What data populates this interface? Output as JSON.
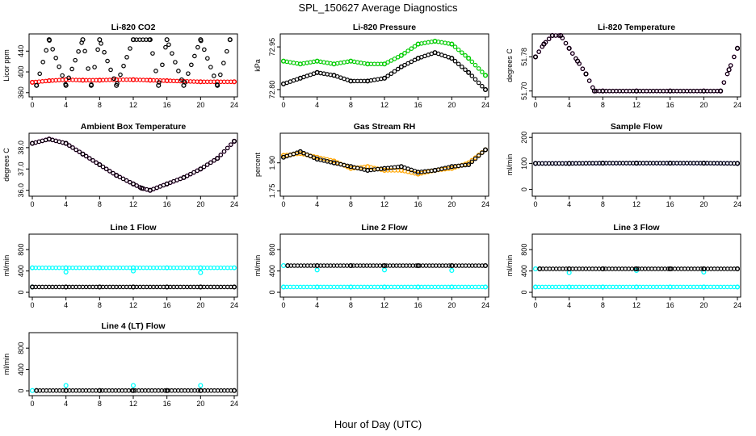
{
  "figure": {
    "title": "SPL_150627  Average Diagnostics",
    "xlabel": "Hour of Day (UTC)"
  },
  "colors": {
    "black": "#000000",
    "red": "#ff0000",
    "green": "#00cc00",
    "magenta": "#ff00ff",
    "orange": "#ffa500",
    "blue": "#0000ff",
    "cyan": "#00ffff"
  },
  "chart_data": [
    {
      "type": "scatter",
      "title": "Li-820 CO2",
      "ylabel": "Licor ppm",
      "xlim": [
        0,
        24
      ],
      "ylim": [
        355,
        470
      ],
      "xticks": [
        "0",
        "4",
        "8",
        "12",
        "16",
        "20",
        "24"
      ],
      "yticks": [
        "360",
        "400",
        "440"
      ],
      "series": [
        {
          "color": "red",
          "x": [
            0,
            2,
            4,
            6,
            8,
            10,
            12,
            14,
            16,
            18,
            20,
            22,
            24
          ],
          "y": [
            380,
            383,
            385,
            384,
            384,
            385,
            385,
            384,
            383,
            382,
            381,
            381,
            381
          ]
        },
        {
          "color": "black",
          "x": [
            0.5,
            2,
            4,
            6,
            7,
            8,
            10,
            12,
            14,
            15,
            16,
            18,
            20,
            22,
            23.5
          ],
          "y": [
            374,
            462,
            374,
            462,
            374,
            462,
            374,
            462,
            462,
            374,
            462,
            374,
            462,
            374,
            462
          ]
        }
      ]
    },
    {
      "type": "scatter",
      "title": "Li-820 Pressure",
      "ylabel": "kPa",
      "xlim": [
        0,
        24
      ],
      "ylim": [
        72.78,
        72.99
      ],
      "xticks": [
        "0",
        "4",
        "8",
        "12",
        "16",
        "20",
        "24"
      ],
      "yticks": [
        "72.80",
        "72.95"
      ],
      "series": [
        {
          "color": "green",
          "x": [
            0,
            2,
            4,
            6,
            8,
            10,
            12,
            14,
            16,
            18,
            20,
            22,
            24
          ],
          "y": [
            72.9,
            72.89,
            72.9,
            72.89,
            72.9,
            72.89,
            72.89,
            72.92,
            72.96,
            72.97,
            72.96,
            72.91,
            72.85
          ]
        },
        {
          "color": "black",
          "x": [
            0,
            2,
            4,
            6,
            8,
            10,
            12,
            14,
            16,
            18,
            20,
            22,
            24
          ],
          "y": [
            72.82,
            72.84,
            72.86,
            72.85,
            72.83,
            72.83,
            72.84,
            72.88,
            72.91,
            72.93,
            72.91,
            72.86,
            72.8
          ]
        }
      ]
    },
    {
      "type": "scatter",
      "title": "Li-820 Temperature",
      "ylabel": "degrees C",
      "xlim": [
        0,
        24
      ],
      "ylim": [
        51.69,
        51.83
      ],
      "xticks": [
        "0",
        "4",
        "8",
        "12",
        "16",
        "20",
        "24"
      ],
      "yticks": [
        "51.70",
        "51.78"
      ],
      "series": [
        {
          "color": "magenta",
          "x": [
            0,
            1,
            2,
            3,
            4,
            5,
            6,
            7,
            8,
            12,
            16,
            20,
            22,
            23,
            24
          ],
          "y": [
            51.78,
            51.81,
            51.83,
            51.83,
            51.8,
            51.77,
            51.74,
            51.7,
            51.7,
            51.7,
            51.7,
            51.7,
            51.7,
            51.75,
            51.8
          ]
        },
        {
          "color": "black",
          "x": [
            0,
            1,
            2,
            3,
            4,
            5,
            6,
            7,
            8,
            12,
            16,
            20,
            22,
            23,
            24
          ],
          "y": [
            51.78,
            51.81,
            51.83,
            51.83,
            51.8,
            51.77,
            51.74,
            51.7,
            51.7,
            51.7,
            51.7,
            51.7,
            51.7,
            51.75,
            51.8
          ]
        }
      ]
    },
    {
      "type": "scatter",
      "title": "Ambient Box Temperature",
      "ylabel": "degrees C",
      "xlim": [
        0,
        24
      ],
      "ylim": [
        35.8,
        38.6
      ],
      "xticks": [
        "0",
        "4",
        "8",
        "12",
        "16",
        "20",
        "24"
      ],
      "yticks": [
        "36.0",
        "37.0",
        "38.0"
      ],
      "series": [
        {
          "color": "magenta",
          "x": [
            0,
            2,
            4,
            6,
            8,
            10,
            12,
            13,
            14,
            16,
            18,
            20,
            22,
            24
          ],
          "y": [
            38.2,
            38.4,
            38.2,
            37.7,
            37.2,
            36.7,
            36.3,
            36.1,
            36.0,
            36.3,
            36.6,
            37.0,
            37.5,
            38.3
          ]
        },
        {
          "color": "black",
          "x": [
            0,
            2,
            4,
            6,
            8,
            10,
            12,
            13,
            14,
            16,
            18,
            20,
            22,
            24
          ],
          "y": [
            38.2,
            38.4,
            38.2,
            37.7,
            37.2,
            36.7,
            36.3,
            36.1,
            36.0,
            36.3,
            36.6,
            37.0,
            37.5,
            38.3
          ]
        }
      ]
    },
    {
      "type": "scatter",
      "title": "Gas Stream RH",
      "ylabel": "percent",
      "xlim": [
        0,
        24
      ],
      "ylim": [
        1.73,
        2.05
      ],
      "xticks": [
        "0",
        "4",
        "8",
        "12",
        "16",
        "20",
        "24"
      ],
      "yticks": [
        "1.75",
        "1.90"
      ],
      "series": [
        {
          "color": "orange",
          "x": [
            0,
            2,
            4,
            6,
            8,
            10,
            12,
            14,
            16,
            18,
            20,
            22,
            24
          ],
          "y": [
            1.94,
            1.95,
            1.93,
            1.91,
            1.87,
            1.88,
            1.86,
            1.86,
            1.84,
            1.86,
            1.87,
            1.9,
            1.97
          ]
        },
        {
          "color": "black",
          "x": [
            0,
            2,
            4,
            6,
            8,
            10,
            12,
            14,
            16,
            18,
            20,
            22,
            24
          ],
          "y": [
            1.93,
            1.96,
            1.92,
            1.9,
            1.88,
            1.86,
            1.87,
            1.88,
            1.85,
            1.86,
            1.88,
            1.89,
            1.97
          ]
        }
      ]
    },
    {
      "type": "scatter",
      "title": "Sample Flow",
      "ylabel": "ml/min",
      "xlim": [
        0,
        24
      ],
      "ylim": [
        -20,
        210
      ],
      "xticks": [
        "0",
        "4",
        "8",
        "12",
        "16",
        "20",
        "24"
      ],
      "yticks": [
        "0",
        "100",
        "200"
      ],
      "series": [
        {
          "color": "blue",
          "x": [
            0,
            4,
            8,
            12,
            16,
            20,
            24
          ],
          "y": [
            100,
            100,
            101,
            101,
            101,
            101,
            100
          ]
        },
        {
          "color": "black",
          "x": [
            0,
            4,
            8,
            12,
            16,
            20,
            24
          ],
          "y": [
            100,
            100,
            101,
            101,
            101,
            101,
            100
          ]
        }
      ]
    },
    {
      "type": "scatter",
      "title": "Line 1 Flow",
      "ylabel": "ml/min",
      "xlim": [
        0,
        24
      ],
      "ylim": [
        -60,
        1060
      ],
      "xticks": [
        "0",
        "4",
        "8",
        "12",
        "16",
        "20",
        "24"
      ],
      "yticks": [
        "0",
        "400",
        "800"
      ],
      "series": [
        {
          "color": "cyan",
          "x": [
            0,
            4,
            8,
            12,
            16,
            20,
            24
          ],
          "y": [
            460,
            460,
            460,
            460,
            460,
            460,
            460
          ]
        },
        {
          "color": "cyan",
          "x": [
            0,
            4,
            12,
            20
          ],
          "y": [
            100,
            380,
            400,
            370
          ]
        },
        {
          "color": "black",
          "x": [
            0,
            4,
            8,
            12,
            16,
            20,
            24
          ],
          "y": [
            100,
            100,
            100,
            100,
            100,
            100,
            100
          ]
        }
      ]
    },
    {
      "type": "scatter",
      "title": "Line 2 Flow",
      "ylabel": "ml/min",
      "xlim": [
        0,
        24
      ],
      "ylim": [
        -60,
        1060
      ],
      "xticks": [
        "0",
        "4",
        "8",
        "12",
        "16",
        "20",
        "24"
      ],
      "yticks": [
        "0",
        "400",
        "800"
      ],
      "series": [
        {
          "color": "cyan",
          "x": [
            0,
            4,
            8,
            12,
            16,
            20,
            24
          ],
          "y": [
            100,
            100,
            100,
            100,
            100,
            100,
            100
          ]
        },
        {
          "color": "cyan",
          "x": [
            0,
            4,
            12,
            20
          ],
          "y": [
            500,
            420,
            420,
            410
          ]
        },
        {
          "color": "black",
          "x": [
            0.5,
            4,
            8,
            12,
            16,
            20,
            24
          ],
          "y": [
            500,
            500,
            500,
            500,
            500,
            500,
            500
          ]
        }
      ]
    },
    {
      "type": "scatter",
      "title": "Line 3 Flow",
      "ylabel": "ml/min",
      "xlim": [
        0,
        24
      ],
      "ylim": [
        -60,
        1060
      ],
      "xticks": [
        "0",
        "4",
        "8",
        "12",
        "16",
        "20",
        "24"
      ],
      "yticks": [
        "0",
        "400",
        "800"
      ],
      "series": [
        {
          "color": "cyan",
          "x": [
            0,
            4,
            8,
            12,
            16,
            20,
            24
          ],
          "y": [
            100,
            100,
            100,
            100,
            100,
            100,
            100
          ]
        },
        {
          "color": "cyan",
          "x": [
            0,
            4,
            12,
            20
          ],
          "y": [
            440,
            370,
            410,
            380
          ]
        },
        {
          "color": "black",
          "x": [
            0.5,
            4,
            8,
            12,
            16,
            20,
            24
          ],
          "y": [
            440,
            440,
            440,
            440,
            440,
            440,
            440
          ]
        }
      ]
    },
    {
      "type": "scatter",
      "title": "Line 4 (LT) Flow",
      "ylabel": "ml/min",
      "xlim": [
        0,
        24
      ],
      "ylim": [
        -60,
        1060
      ],
      "xticks": [
        "0",
        "4",
        "8",
        "12",
        "16",
        "20",
        "24"
      ],
      "yticks": [
        "0",
        "400",
        "800"
      ],
      "series": [
        {
          "color": "cyan",
          "x": [
            0,
            4,
            12,
            20
          ],
          "y": [
            5,
            100,
            100,
            100
          ]
        },
        {
          "color": "black",
          "x": [
            0.5,
            4,
            8,
            12,
            16,
            20,
            24
          ],
          "y": [
            5,
            5,
            5,
            5,
            5,
            5,
            5
          ]
        }
      ]
    }
  ]
}
